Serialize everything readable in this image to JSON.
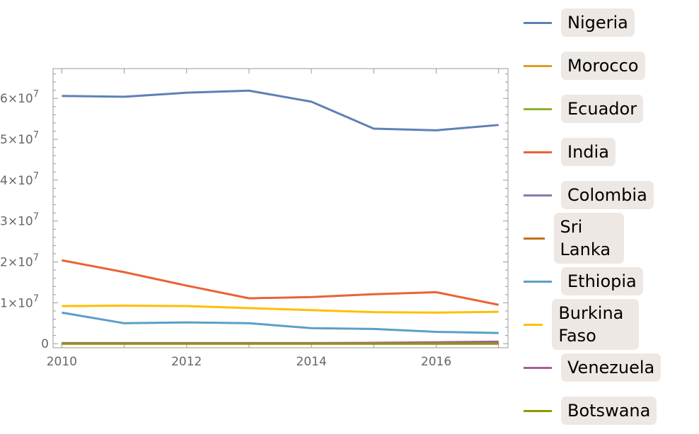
{
  "chart_data": {
    "type": "line",
    "title": "",
    "xlabel": "",
    "ylabel": "",
    "x": [
      2010,
      2011,
      2012,
      2013,
      2014,
      2015,
      2016,
      2017
    ],
    "xlim": [
      2009.86,
      2017.15
    ],
    "ylim": [
      -1000000,
      67300000
    ],
    "x_ticks": [
      {
        "value": 2010,
        "label": "2010"
      },
      {
        "value": 2012,
        "label": "2012"
      },
      {
        "value": 2014,
        "label": "2014"
      },
      {
        "value": 2016,
        "label": "2016"
      }
    ],
    "y_ticks": [
      {
        "value": 0,
        "mant": "0",
        "exp": ""
      },
      {
        "value": 10000000,
        "mant": "1×10",
        "exp": "7"
      },
      {
        "value": 20000000,
        "mant": "2×10",
        "exp": "7"
      },
      {
        "value": 30000000,
        "mant": "3×10",
        "exp": "7"
      },
      {
        "value": 40000000,
        "mant": "4×10",
        "exp": "7"
      },
      {
        "value": 50000000,
        "mant": "5×10",
        "exp": "7"
      },
      {
        "value": 60000000,
        "mant": "6×10",
        "exp": "7"
      }
    ],
    "legend_position": "right",
    "series": [
      {
        "name": "Nigeria",
        "color": "#5e81b5",
        "values": [
          60600000,
          60400000,
          61400000,
          61900000,
          59200000,
          52600000,
          52200000,
          53500000
        ]
      },
      {
        "name": "Morocco",
        "color": "#e19c24",
        "values": [
          50000,
          50000,
          50000,
          50000,
          50000,
          50000,
          50000,
          50000
        ]
      },
      {
        "name": "Ecuador",
        "color": "#8fb032",
        "values": [
          20000,
          20000,
          20000,
          20000,
          20000,
          20000,
          20000,
          20000
        ]
      },
      {
        "name": "India",
        "color": "#eb6235",
        "values": [
          20400000,
          17500000,
          14200000,
          11100000,
          11400000,
          12100000,
          12600000,
          9500000
        ]
      },
      {
        "name": "Colombia",
        "color": "#8778b3",
        "values": [
          100000,
          100000,
          100000,
          100000,
          100000,
          100000,
          150000,
          200000
        ]
      },
      {
        "name": "Sri Lanka",
        "color": "#c56e1a",
        "values": [
          30000,
          30000,
          30000,
          30000,
          30000,
          30000,
          30000,
          30000
        ]
      },
      {
        "name": "Ethiopia",
        "color": "#5d9ec7",
        "values": [
          7600000,
          5000000,
          5200000,
          5000000,
          3800000,
          3600000,
          2900000,
          2600000
        ]
      },
      {
        "name": "Burkina Faso",
        "color": "#ffbf00",
        "values": [
          9200000,
          9300000,
          9200000,
          8700000,
          8200000,
          7700000,
          7600000,
          7800000
        ]
      },
      {
        "name": "Venezuela",
        "color": "#a5609d",
        "values": [
          150000,
          150000,
          150000,
          150000,
          150000,
          200000,
          350000,
          500000
        ]
      },
      {
        "name": "Botswana",
        "color": "#929600",
        "values": [
          0,
          0,
          0,
          0,
          0,
          0,
          0,
          0
        ]
      }
    ]
  }
}
